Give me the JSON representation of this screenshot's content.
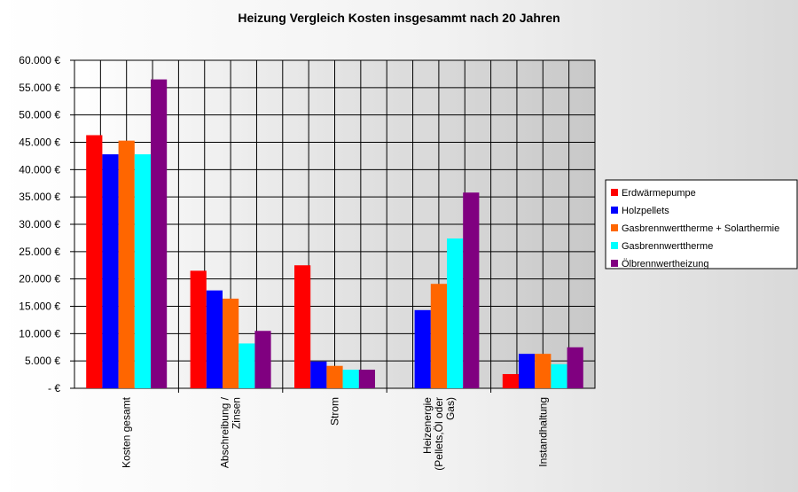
{
  "chart_data": {
    "type": "bar",
    "title": "Heizung Vergleich Kosten insgesammt nach 20 Jahren",
    "xlabel": "",
    "ylabel": "",
    "ylim": [
      0,
      60000
    ],
    "grid": true,
    "legend_position": "right",
    "y_ticks": [
      "-  €",
      "5.000 €",
      "10.000 €",
      "15.000 €",
      "20.000 €",
      "25.000 €",
      "30.000 €",
      "35.000 €",
      "40.000 €",
      "45.000 €",
      "50.000 €",
      "55.000 €",
      "60.000 €"
    ],
    "categories": [
      [
        "Kosten gesamt"
      ],
      [
        "Abschreibung /",
        "Zinsen"
      ],
      [
        "Strom"
      ],
      [
        "Heizenergie",
        "(Pellets,Öl oder",
        "Gas)"
      ],
      [
        "Instandhaltung"
      ]
    ],
    "series": [
      {
        "name": "Erdwärmepumpe",
        "color": "#ff0000",
        "values": [
          46300,
          21500,
          22500,
          0,
          2600
        ]
      },
      {
        "name": "Holzpellets",
        "color": "#0000ff",
        "values": [
          42800,
          17900,
          4900,
          14300,
          6300
        ]
      },
      {
        "name": "Gasbrennwerttherme + Solarthermie",
        "color": "#ff6600",
        "values": [
          45300,
          16400,
          4100,
          19100,
          6300
        ]
      },
      {
        "name": "Gasbrennwerttherme",
        "color": "#00ffff",
        "values": [
          42800,
          8200,
          3400,
          27400,
          4400
        ]
      },
      {
        "name": "Ölbrennwertheizung",
        "color": "#800080",
        "values": [
          56500,
          10500,
          3400,
          35800,
          7500
        ]
      }
    ]
  }
}
